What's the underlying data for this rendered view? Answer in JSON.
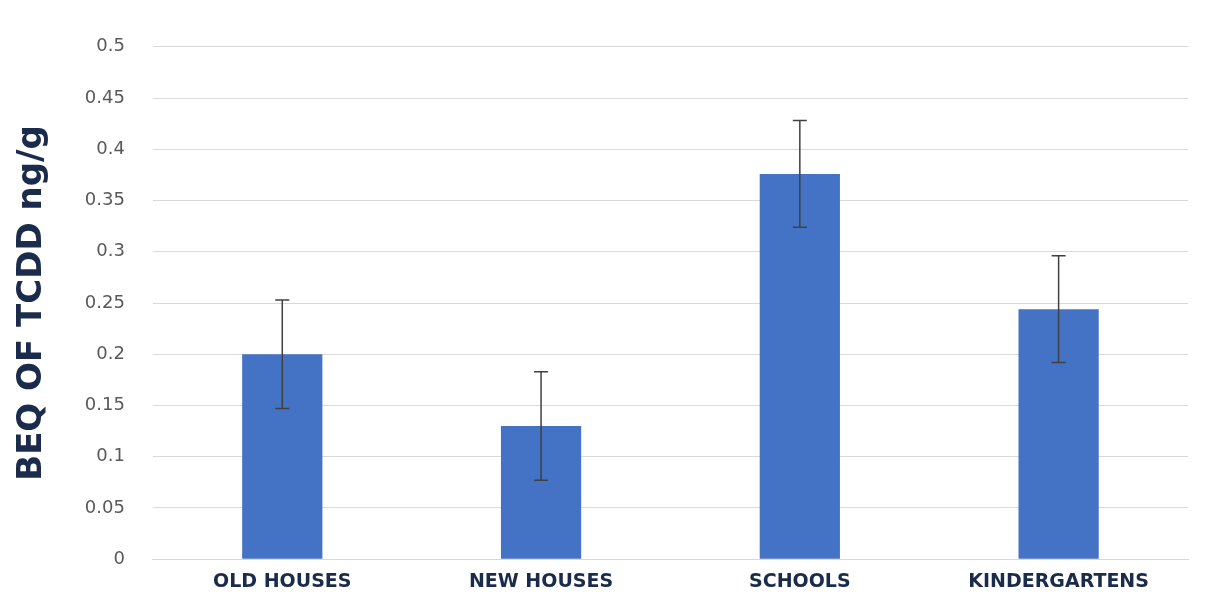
{
  "chart_data": {
    "type": "bar",
    "ylabel": "BEQ OF TCDD ng/g",
    "categories": [
      "OLD HOUSES",
      "NEW HOUSES",
      "SCHOOLS",
      "KINDERGARTENS"
    ],
    "values": [
      0.2,
      0.13,
      0.376,
      0.244
    ],
    "color": "#4472c4",
    "errors": [
      0.053,
      0.053,
      0.052,
      0.052
    ],
    "ylim": [
      0,
      0.5
    ],
    "yticks": [
      0,
      0.05,
      0.1,
      0.15,
      0.2,
      0.25,
      0.3,
      0.35,
      0.4,
      0.45,
      0.5
    ],
    "grid": "y",
    "legend": false
  }
}
